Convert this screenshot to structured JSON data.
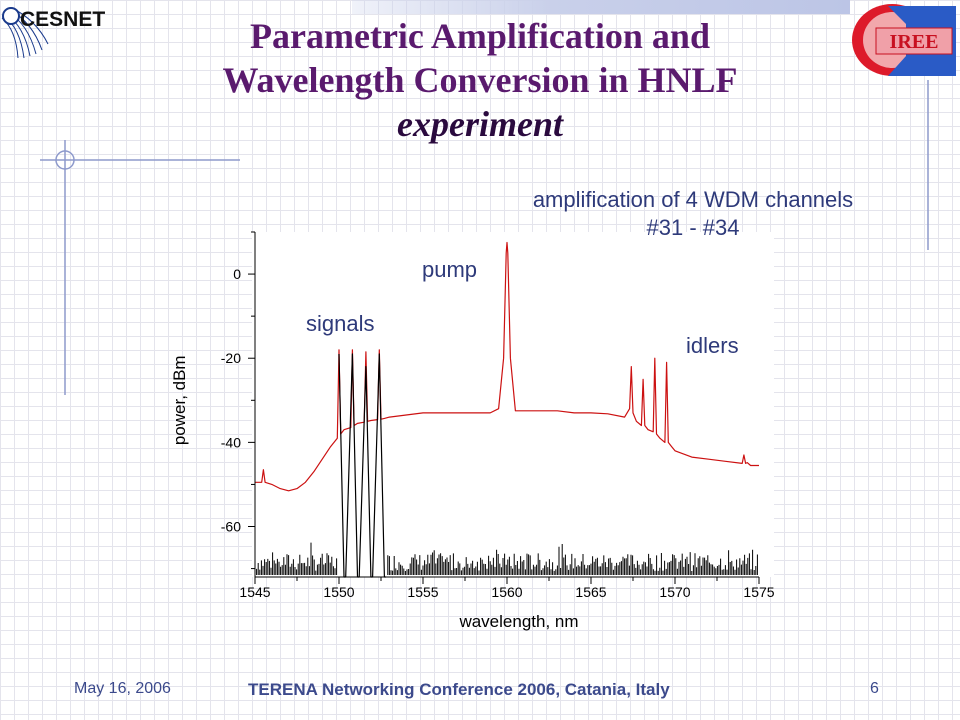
{
  "logos": {
    "left_text": "CESNET",
    "right_text": "IREE"
  },
  "title": {
    "line1": "Parametric Amplification and",
    "line2": "Wavelength Conversion in HNLF",
    "line3": "experiment"
  },
  "footer": {
    "date": "May 16, 2006",
    "conference": "TERENA Networking Conference 2006, Catania, Italy",
    "page": "6"
  },
  "colors": {
    "title": "#5a1a6e",
    "text": "#2e3a7a",
    "red_trace": "#cc1111",
    "black_trace": "#000000"
  },
  "chart_data": {
    "type": "line",
    "title": "",
    "xlabel": "wavelength, nm",
    "ylabel": "power, dBm",
    "xlim": [
      1545,
      1575
    ],
    "ylim": [
      -72,
      10
    ],
    "xticks": [
      1545,
      1550,
      1555,
      1560,
      1565,
      1570,
      1575
    ],
    "xtick_labels": [
      "1545",
      "1550",
      "1555",
      "1560",
      "1565",
      "1570",
      "1575"
    ],
    "yticks": [
      0,
      -20,
      -40,
      -60
    ],
    "ytick_labels": [
      "0",
      "-20",
      "-40",
      "-60"
    ],
    "grid": false,
    "annotations": [
      {
        "text": "amplification of 4 WDM channels",
        "text2": "#31  - #34"
      },
      {
        "text": "pump"
      },
      {
        "text": "signals"
      },
      {
        "text": "idlers"
      }
    ],
    "series": [
      {
        "color": "#cc1111",
        "x": [
          1545.0,
          1545.4,
          1545.5,
          1545.6,
          1546.0,
          1546.5,
          1547.0,
          1547.5,
          1548.0,
          1548.5,
          1549.0,
          1549.5,
          1549.9,
          1550.0,
          1550.1,
          1550.3,
          1550.7,
          1550.8,
          1550.9,
          1551.1,
          1551.5,
          1551.6,
          1551.7,
          1551.9,
          1552.3,
          1552.4,
          1552.5,
          1552.7,
          1553.0,
          1554.0,
          1555.0,
          1556.0,
          1557.0,
          1558.0,
          1559.0,
          1559.5,
          1559.8,
          1559.95,
          1560.0,
          1560.05,
          1560.2,
          1560.5,
          1561.0,
          1562.0,
          1563.0,
          1564.0,
          1565.0,
          1566.0,
          1567.0,
          1567.3,
          1567.4,
          1567.5,
          1567.7,
          1568.0,
          1568.1,
          1568.2,
          1568.4,
          1568.7,
          1568.8,
          1568.9,
          1569.1,
          1569.4,
          1569.5,
          1569.6,
          1569.8,
          1570.0,
          1571.0,
          1572.0,
          1573.0,
          1574.0,
          1574.1,
          1574.2,
          1574.3,
          1574.5,
          1575.0
        ],
        "y": [
          -49.5,
          -49.5,
          -46.5,
          -49.5,
          -50.0,
          -51.0,
          -51.5,
          -51.0,
          -49.5,
          -47.0,
          -44.0,
          -41.0,
          -39.0,
          -18.0,
          -38.0,
          -37.0,
          -36.5,
          -18.0,
          -36.0,
          -35.5,
          -35.2,
          -18.5,
          -35.0,
          -34.8,
          -34.6,
          -18.0,
          -34.5,
          -34.3,
          -34.0,
          -33.5,
          -33.0,
          -33.0,
          -33.0,
          -33.0,
          -33.0,
          -32.0,
          -20.0,
          5.0,
          7.5,
          5.0,
          -20.0,
          -32.5,
          -32.5,
          -32.5,
          -32.5,
          -33.0,
          -33.0,
          -33.2,
          -34.0,
          -32.0,
          -22.0,
          -33.0,
          -35.0,
          -36.0,
          -25.0,
          -36.0,
          -37.0,
          -37.5,
          -20.0,
          -38.0,
          -39.0,
          -40.0,
          -21.0,
          -40.0,
          -41.0,
          -42.0,
          -43.5,
          -44.0,
          -44.5,
          -45.0,
          -43.0,
          -45.0,
          -44.8,
          -45.5,
          -45.5
        ]
      },
      {
        "color": "#000000",
        "x": [
          1550.0,
          1550.3,
          1550.4,
          1550.8,
          1551.1,
          1551.2,
          1551.6,
          1551.9,
          1552.0,
          1552.4,
          1552.7,
          1552.8
        ],
        "y": [
          -19.0,
          -72.0,
          -72.0,
          -19.0,
          -72.0,
          -72.0,
          -22.0,
          -72.0,
          -72.0,
          -19.0,
          -72.0,
          -72.0
        ]
      }
    ]
  }
}
